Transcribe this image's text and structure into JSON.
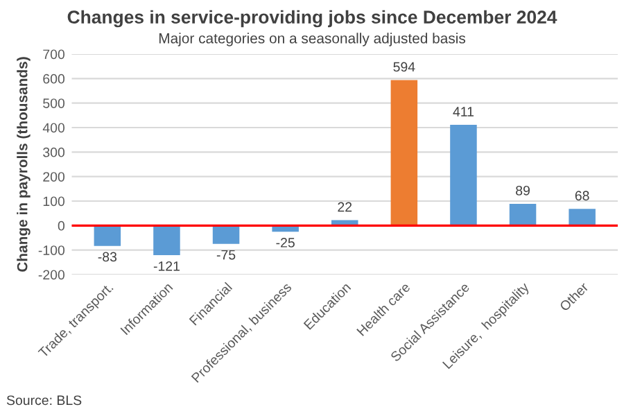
{
  "chart_data": {
    "type": "bar",
    "title": "Changes in service-providing jobs since December 2024",
    "subtitle": "Major categories on a seasonally adjusted basis",
    "ylabel": "Change in payrolls (thousands)",
    "categories": [
      "Trade, transport.",
      "Information",
      "Financial",
      "Professional, business",
      "Education",
      "Health care",
      "Social Assistance",
      "Leisure,  hospitality",
      "Other"
    ],
    "values": [
      -83,
      -121,
      -75,
      -25,
      22,
      594,
      411,
      89,
      68
    ],
    "colors": [
      "#5b9bd5",
      "#5b9bd5",
      "#5b9bd5",
      "#5b9bd5",
      "#5b9bd5",
      "#ed7d31",
      "#5b9bd5",
      "#5b9bd5",
      "#5b9bd5"
    ],
    "ylim": [
      -200,
      700
    ],
    "yticks": [
      -200,
      -100,
      0,
      100,
      200,
      300,
      400,
      500,
      600,
      700
    ],
    "grid": "y",
    "data_labels": true,
    "ref_lines": [
      {
        "axis": "y",
        "value": 0,
        "color": "#ff0000",
        "line_style": "solid"
      }
    ],
    "annotations": [
      "Source: BLS"
    ]
  }
}
